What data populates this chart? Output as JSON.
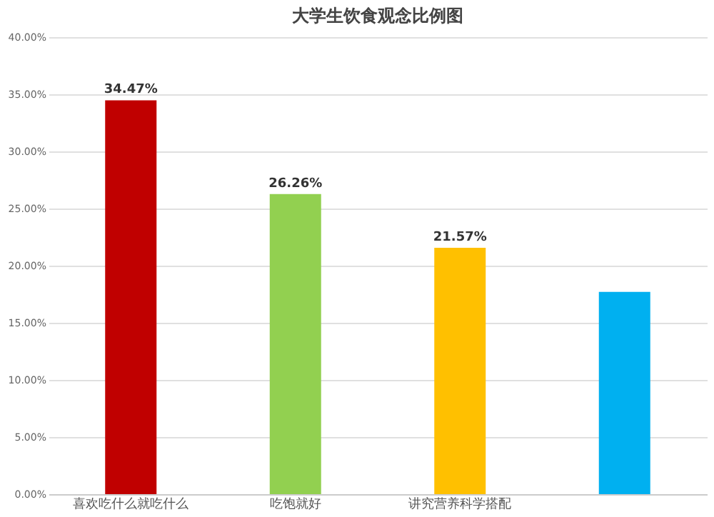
{
  "chart_data": {
    "type": "bar",
    "title": "大学生饮食观念比例图",
    "categories": [
      "喜欢吃什么就吃什么",
      "吃饱就好",
      "讲究营养科学搭配",
      null
    ],
    "values": [
      34.47,
      26.26,
      21.57,
      17.7
    ],
    "colors": [
      "#c00000",
      "#92d050",
      "#ffc000",
      "#00b0f0"
    ],
    "value_labels": [
      "34.47%",
      "26.26%",
      "21.57%",
      null
    ],
    "ylim": [
      0,
      40
    ],
    "yticks": [
      {
        "value": 0,
        "label": "0.00%"
      },
      {
        "value": 5,
        "label": "5.00%"
      },
      {
        "value": 10,
        "label": "10.00%"
      },
      {
        "value": 15,
        "label": "15.00%"
      },
      {
        "value": 20,
        "label": "20.00%"
      },
      {
        "value": 25,
        "label": "25.00%"
      },
      {
        "value": 30,
        "label": "30.00%"
      },
      {
        "value": 35,
        "label": "35.00%"
      },
      {
        "value": 40,
        "label": "40.00%"
      }
    ],
    "grid": "y"
  }
}
